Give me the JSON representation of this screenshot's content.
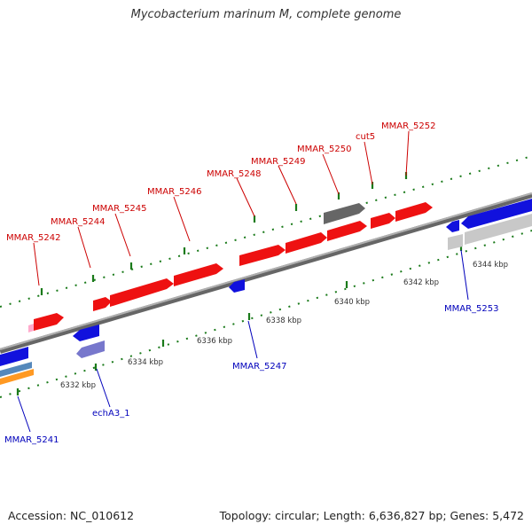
{
  "title": "Mycobacterium marinum M, complete genome",
  "footer": {
    "accession": "Accession: NC_010612",
    "summary": "Topology: circular; Length: 6,636,827 bp; Genes: 5,472"
  },
  "colors": {
    "forward_gene": "#ee1111",
    "reverse_gene": "#1111dd",
    "forward_label": "#cc0000",
    "reverse_label": "#0000bb",
    "backbone": "#7a7a7a",
    "tick": "#1a7a1a",
    "pseudo_gray": "#666666",
    "light_gray": "#c8c8c8",
    "pink": "#ffaacc",
    "orange": "#ff9922",
    "steel_blue": "#5588bb",
    "lavender": "#7777cc"
  },
  "scale_labels": [
    "6332 kbp",
    "6334 kbp",
    "6336 kbp",
    "6338 kbp",
    "6340 kbp",
    "6342 kbp",
    "6344 kbp"
  ],
  "genes_forward": [
    "MMAR_5242",
    "MMAR_5244",
    "MMAR_5245",
    "MMAR_5246",
    "MMAR_5248",
    "MMAR_5249",
    "MMAR_5250",
    "cut5",
    "MMAR_5252"
  ],
  "genes_reverse": [
    "MMAR_5241",
    "echA3_1",
    "MMAR_5247",
    "MMAR_5253"
  ]
}
